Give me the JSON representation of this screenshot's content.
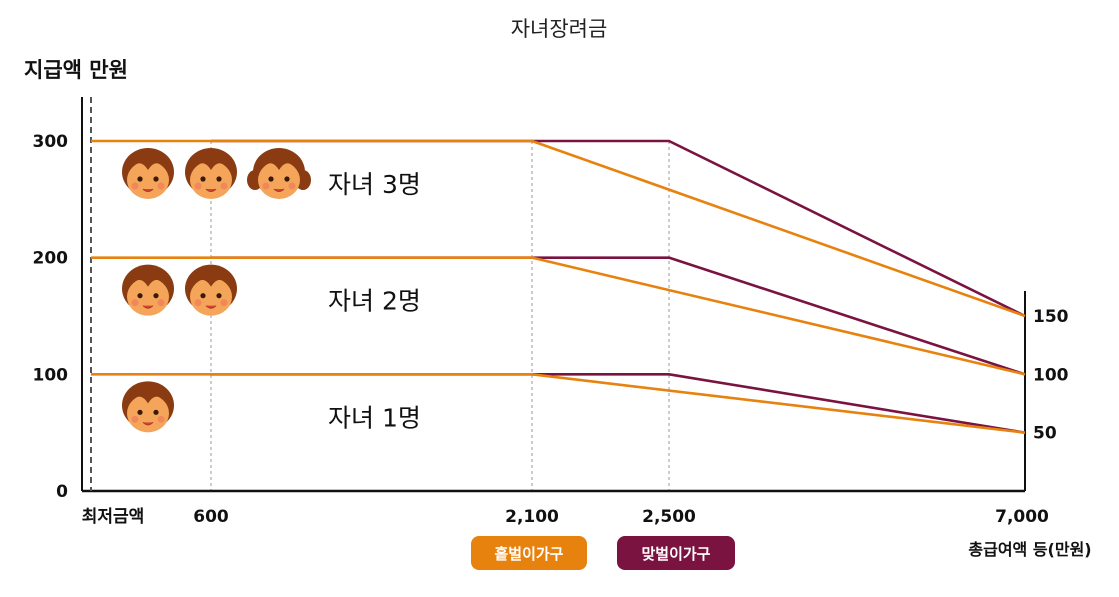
{
  "chart_data": {
    "type": "line",
    "title": "자녀장려금",
    "ylabel": "지급액 만원",
    "xlabel": "총급여액 등(만원)",
    "x_ticks": [
      "최저금액",
      "600",
      "2,100",
      "2,500",
      "7,000"
    ],
    "y_ticks": [
      "0",
      "100",
      "200",
      "300"
    ],
    "right_ticks": [
      "150",
      "100",
      "50"
    ],
    "ylim": [
      0,
      300
    ],
    "groups": [
      {
        "label": "자녀 1명",
        "children": 1,
        "single": [
          [
            0,
            100
          ],
          [
            2100,
            100
          ],
          [
            7000,
            50
          ]
        ],
        "dual": [
          [
            600,
            100
          ],
          [
            2500,
            100
          ],
          [
            7000,
            50
          ]
        ]
      },
      {
        "label": "자녀 2명",
        "children": 2,
        "single": [
          [
            0,
            200
          ],
          [
            2100,
            200
          ],
          [
            7000,
            100
          ]
        ],
        "dual": [
          [
            600,
            200
          ],
          [
            2500,
            200
          ],
          [
            7000,
            100
          ]
        ]
      },
      {
        "label": "자녀 3명",
        "children": 3,
        "single": [
          [
            0,
            300
          ],
          [
            2100,
            300
          ],
          [
            7000,
            150
          ]
        ],
        "dual": [
          [
            600,
            300
          ],
          [
            2500,
            300
          ],
          [
            7000,
            150
          ]
        ]
      }
    ],
    "legend": [
      {
        "key": "single",
        "label": "홑벌이가구",
        "color": "#e8820e"
      },
      {
        "key": "dual",
        "label": "맞벌이가구",
        "color": "#7a1340"
      }
    ]
  }
}
